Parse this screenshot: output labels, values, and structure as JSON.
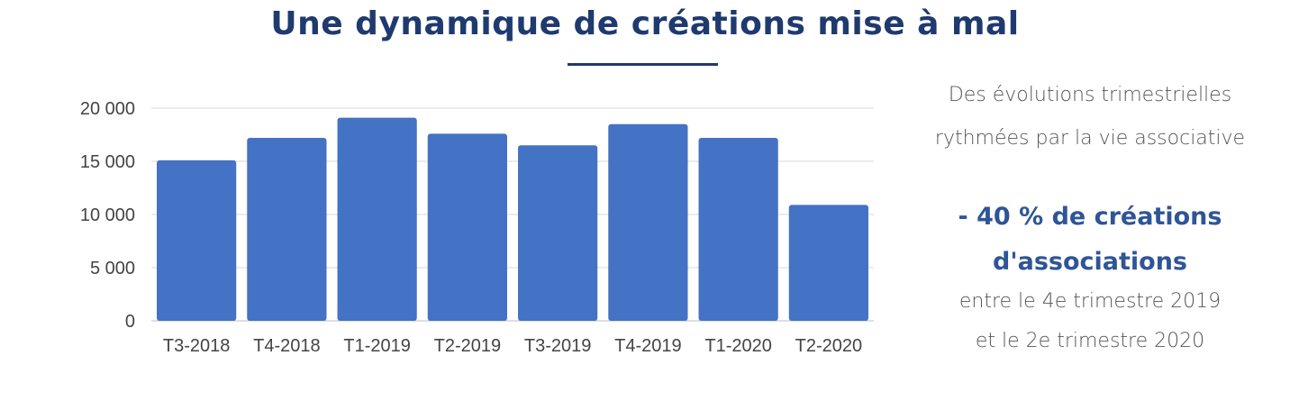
{
  "title": "Une dynamique de créations mise à mal",
  "colors": {
    "title": "#1f3a6e",
    "bar": "#4472c4",
    "highlight": "#2f5597",
    "text": "#555555",
    "grid": "#d9d9d9"
  },
  "chart_data": {
    "type": "bar",
    "categories": [
      "T3-2018",
      "T4-2018",
      "T1-2019",
      "T2-2019",
      "T3-2019",
      "T4-2019",
      "T1-2020",
      "T2-2020"
    ],
    "values": [
      15100,
      17200,
      19100,
      17600,
      16500,
      18500,
      17200,
      10900
    ],
    "ylim": [
      0,
      20000
    ],
    "yticks": [
      0,
      5000,
      10000,
      15000,
      20000
    ],
    "ytick_labels": [
      "0",
      "5 000",
      "10 000",
      "15 000",
      "20 000"
    ],
    "grid": true,
    "xlabel": "",
    "ylabel": ""
  },
  "side_panel": {
    "line1": "Des évolutions trimestrielles",
    "line2": "rythmées par la vie associative",
    "highlight1": "- 40 % de créations",
    "highlight2": "d'associations",
    "line3": "entre le 4e trimestre 2019",
    "line4": "et le 2e trimestre 2020"
  }
}
